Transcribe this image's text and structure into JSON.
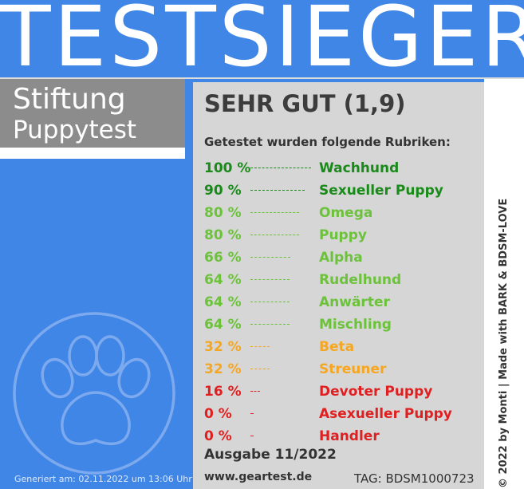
{
  "header": {
    "title": "TESTSIEGER"
  },
  "badge": {
    "line1": "Stiftung",
    "line2": "Puppytest"
  },
  "footer_left": {
    "generated": "Generiert am: 02.11.2022 um 13:06 Uhr"
  },
  "panel": {
    "grade": "SEHR GUT (1,9)",
    "subhead": "Getestet wurden folgende Rubriken:",
    "ausgabe": "Ausgabe 11/2022",
    "website": "www.geartest.de",
    "tag": "TAG: BDSM1000723"
  },
  "side": {
    "copyright": "© 2022 by Monti | Made with BARK & BDSM-LOVE"
  },
  "colors": {
    "green": "#1a8a1a",
    "light_green": "#6cc23a",
    "orange": "#f5a623",
    "red": "#e02020",
    "blue": "#3f86e6",
    "gray": "#8c8c8c"
  },
  "icons": {
    "paw": "paw-print-icon"
  },
  "rows": [
    {
      "pct": "100 %",
      "value": 100,
      "category": "Wachhund",
      "color": "#1a8a1a"
    },
    {
      "pct": "90 %",
      "value": 90,
      "category": "Sexueller Puppy",
      "color": "#1a8a1a"
    },
    {
      "pct": "80 %",
      "value": 80,
      "category": "Omega",
      "color": "#6cc23a"
    },
    {
      "pct": "80 %",
      "value": 80,
      "category": "Puppy",
      "color": "#6cc23a"
    },
    {
      "pct": "66 %",
      "value": 66,
      "category": "Alpha",
      "color": "#6cc23a"
    },
    {
      "pct": "64 %",
      "value": 64,
      "category": "Rudelhund",
      "color": "#6cc23a"
    },
    {
      "pct": "64 %",
      "value": 64,
      "category": "Anwärter",
      "color": "#6cc23a"
    },
    {
      "pct": "64 %",
      "value": 64,
      "category": "Mischling",
      "color": "#6cc23a"
    },
    {
      "pct": "32 %",
      "value": 32,
      "category": "Beta",
      "color": "#f5a623"
    },
    {
      "pct": "32 %",
      "value": 32,
      "category": "Streuner",
      "color": "#f5a623"
    },
    {
      "pct": "16 %",
      "value": 16,
      "category": "Devoter Puppy",
      "color": "#e02020"
    },
    {
      "pct": "0 %",
      "value": 0,
      "category": "Asexueller Puppy",
      "color": "#e02020"
    },
    {
      "pct": "0 %",
      "value": 0,
      "category": "Handler",
      "color": "#e02020"
    }
  ]
}
